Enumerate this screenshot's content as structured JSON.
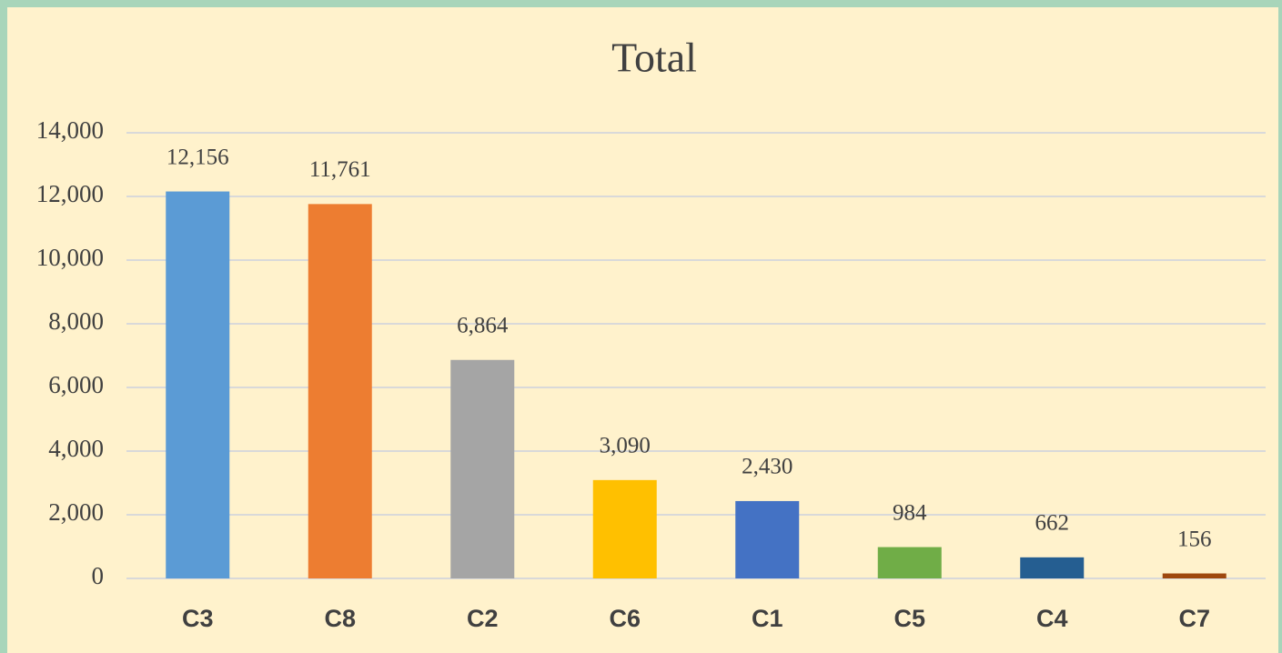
{
  "chart_data": {
    "type": "bar",
    "title": "Total",
    "categories": [
      "C3",
      "C8",
      "C2",
      "C6",
      "C1",
      "C5",
      "C4",
      "C7"
    ],
    "values": [
      12156,
      11761,
      6864,
      3090,
      2430,
      984,
      662,
      156
    ],
    "value_labels": [
      "12,156",
      "11,761",
      "6,864",
      "3,090",
      "2,430",
      "984",
      "662",
      "156"
    ],
    "colors": [
      "#5b9bd5",
      "#ed7d31",
      "#a5a5a5",
      "#ffc000",
      "#4472c4",
      "#70ad47",
      "#255e91",
      "#9e480e"
    ],
    "ylim": [
      0,
      14000
    ],
    "yticks": [
      0,
      {
        "value": 2000,
        "label": "2,000"
      },
      {
        "value": 4000,
        "label": "4,000"
      },
      {
        "value": 6000,
        "label": "6,000"
      },
      {
        "value": 8000,
        "label": "8,000"
      },
      {
        "value": 10000,
        "label": "10,000"
      },
      {
        "value": 12000,
        "label": "12,000"
      },
      {
        "value": 14000,
        "label": "14,000"
      }
    ],
    "grid": true
  }
}
